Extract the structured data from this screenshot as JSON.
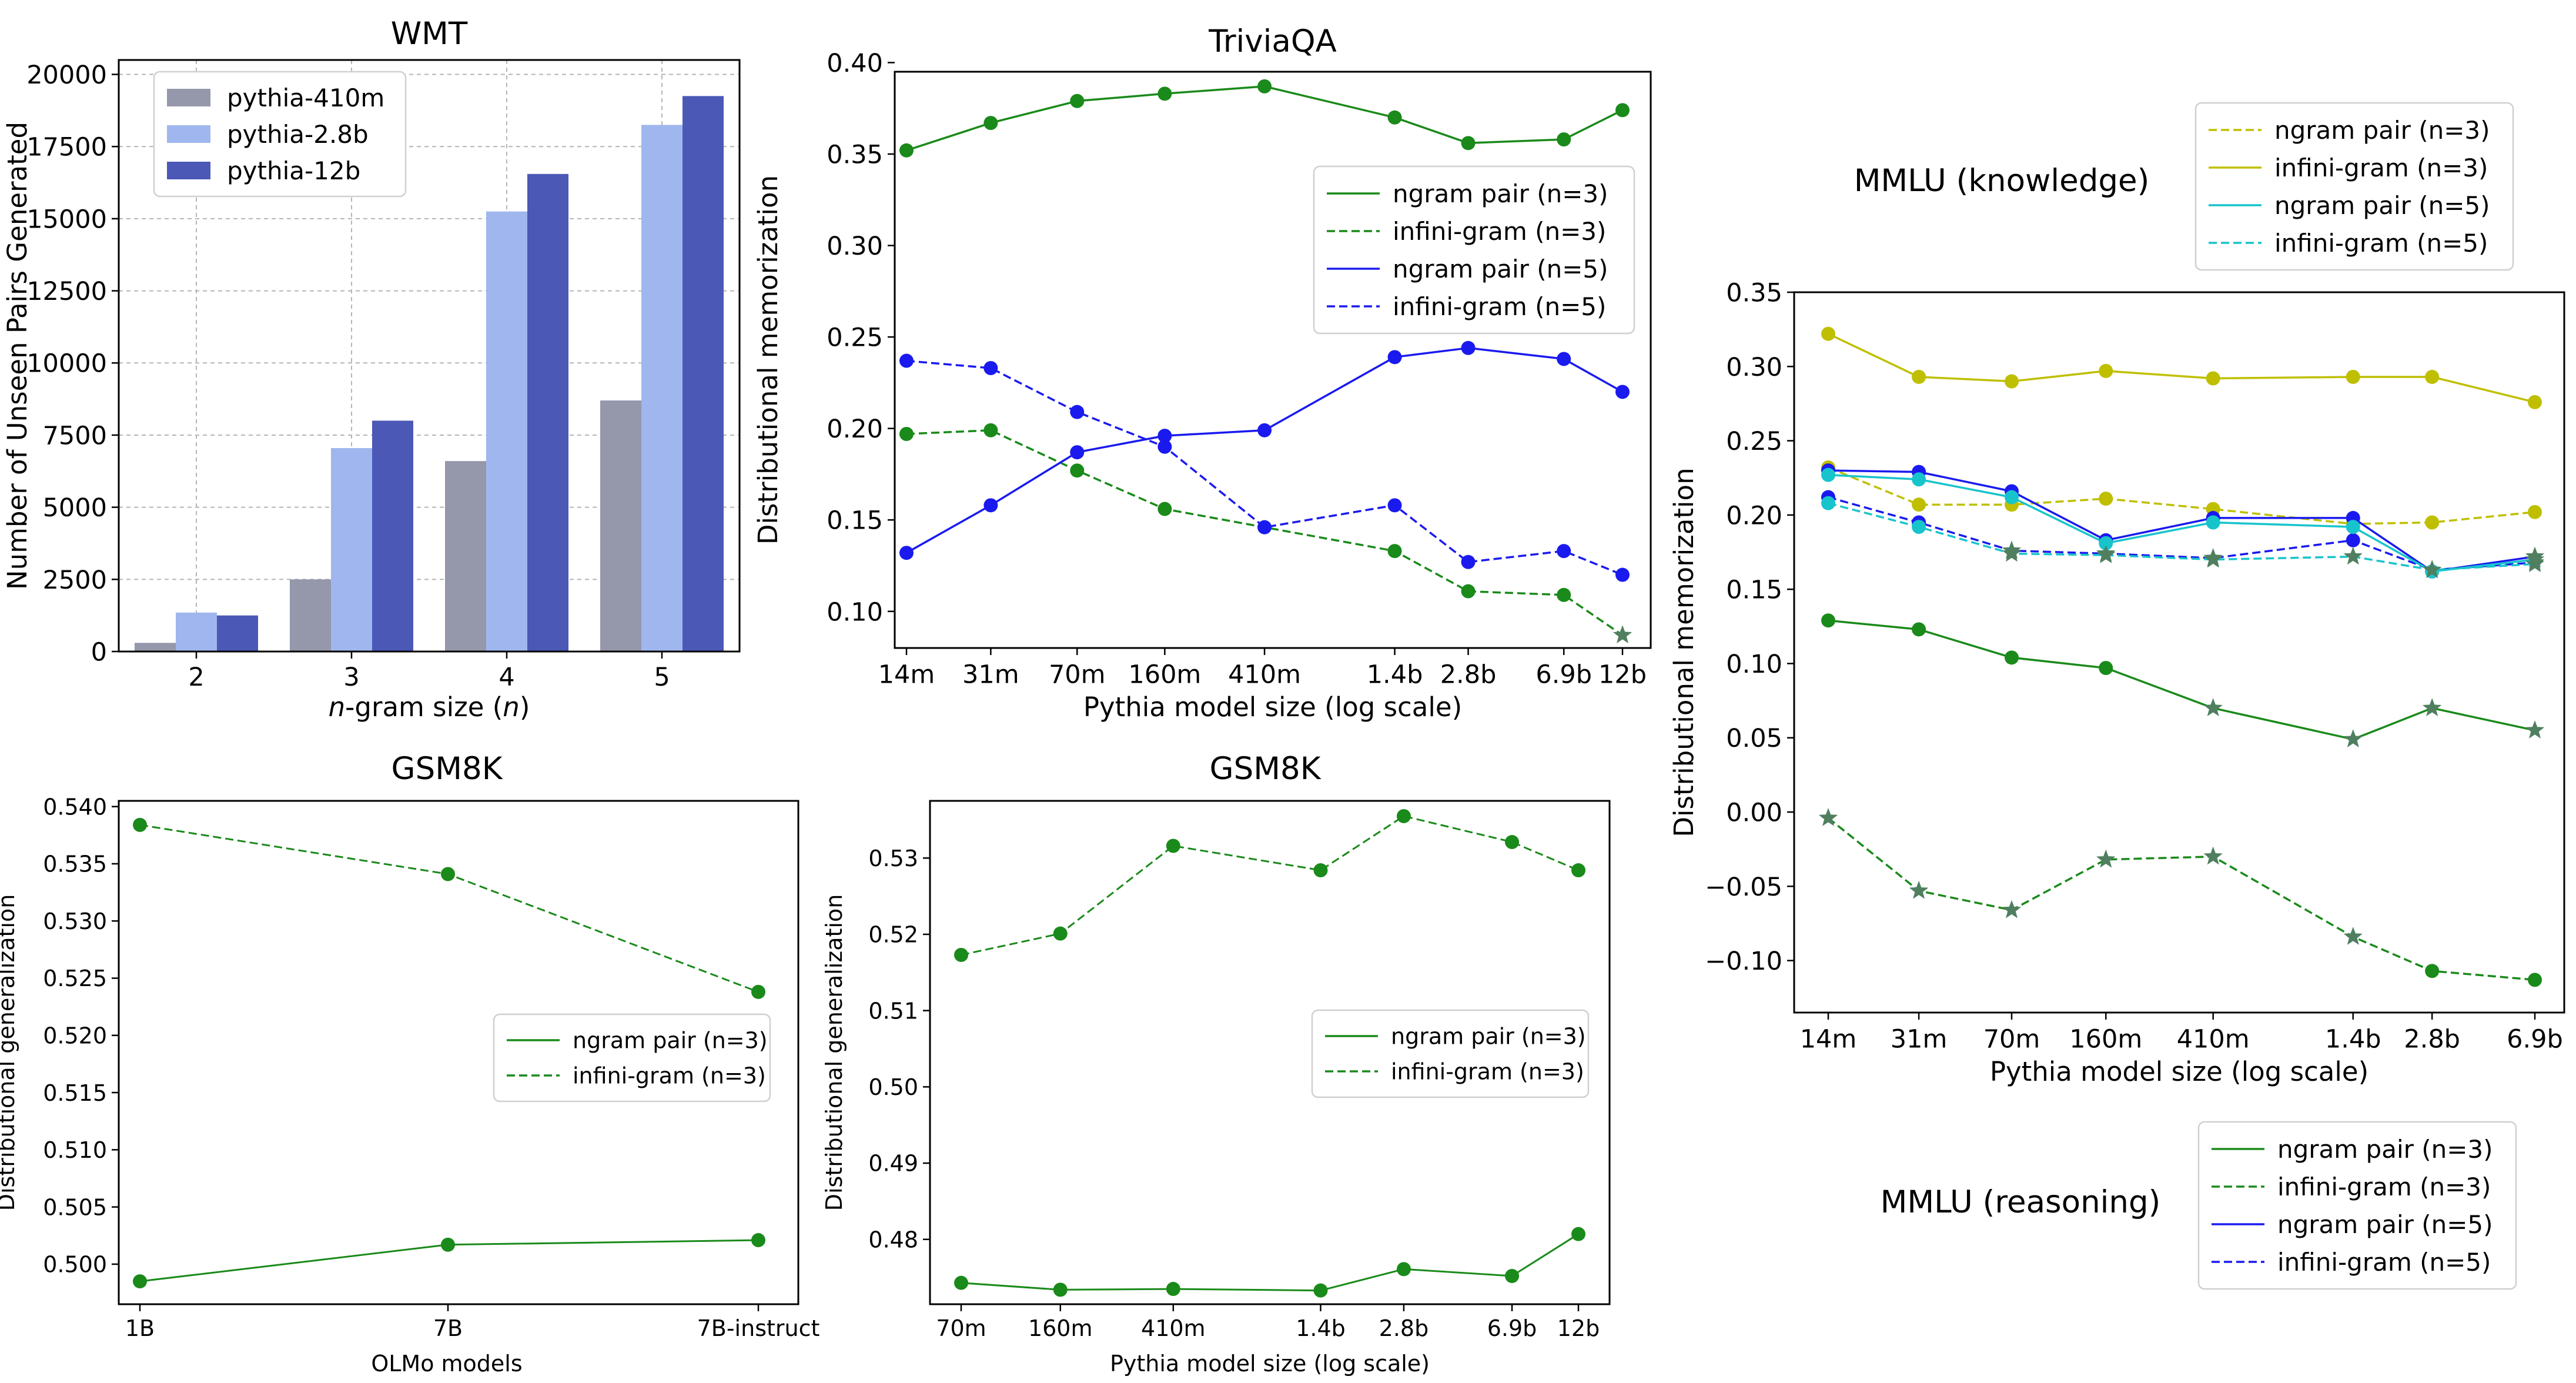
{
  "colors": {
    "green": "#1a8a1a",
    "blue": "#1a1aee",
    "olive": "#bfbf00",
    "cyan": "#17c4cc",
    "star": "#4f7f5f",
    "bar_410m": "#9597ab",
    "bar_2_8b": "#9fb7ee",
    "bar_12b": "#4b58b6"
  },
  "chart_data": [
    {
      "id": "wmt",
      "type": "bar",
      "title": "WMT",
      "xlabel_italic": "n",
      "xlabel_rest": "-gram size (",
      "xlabel_italic2": "n",
      "xlabel_end": ")",
      "ylabel": "Number of Unseen Pairs Generated",
      "categories": [
        "2",
        "3",
        "4",
        "5"
      ],
      "ylim": [
        0,
        20500
      ],
      "yticks": [
        "0",
        "2500",
        "5000",
        "7500",
        "10000",
        "12500",
        "15000",
        "17500",
        "20000"
      ],
      "ytick_values": [
        0,
        2500,
        5000,
        7500,
        10000,
        12500,
        15000,
        17500,
        20000
      ],
      "grid": true,
      "legend_position": "top-left",
      "series": [
        {
          "name": "pythia-410m",
          "color": "bar_410m",
          "values": [
            300,
            2500,
            6600,
            8700
          ]
        },
        {
          "name": "pythia-2.8b",
          "color": "bar_2_8b",
          "values": [
            1350,
            7050,
            15250,
            18250
          ]
        },
        {
          "name": "pythia-12b",
          "color": "bar_12b",
          "values": [
            1250,
            8000,
            16550,
            19250
          ]
        }
      ]
    },
    {
      "id": "triviaqa",
      "type": "line",
      "title": "TriviaQA",
      "xlabel": "Pythia model size (log scale)",
      "ylabel": "Distributional memorization",
      "x": [
        "14m",
        "31m",
        "70m",
        "160m",
        "410m",
        "1.4b",
        "2.8b",
        "6.9b",
        "12b"
      ],
      "x_params_millions": [
        14,
        31,
        70,
        160,
        410,
        1400,
        2800,
        6900,
        12000
      ],
      "ylim": [
        0.08,
        0.395
      ],
      "yticks": [
        "0.10",
        "0.15",
        "0.20",
        "0.25",
        "0.30",
        "0.35",
        "0.40"
      ],
      "ytick_values": [
        0.1,
        0.15,
        0.2,
        0.25,
        0.3,
        0.35,
        0.4
      ],
      "legend_position": "right",
      "series": [
        {
          "name": "ngram pair (n=3)",
          "color": "green",
          "dash": false,
          "values": [
            0.352,
            0.367,
            0.379,
            0.383,
            0.387,
            0.37,
            0.356,
            0.358,
            0.374
          ],
          "markers": [
            "o",
            "o",
            "o",
            "o",
            "o",
            "o",
            "o",
            "o",
            "o"
          ]
        },
        {
          "name": "infini-gram (n=3)",
          "color": "green",
          "dash": true,
          "values": [
            0.197,
            0.199,
            0.177,
            0.156,
            0.146,
            0.133,
            0.111,
            0.109,
            0.087
          ],
          "markers": [
            "o",
            "o",
            "o",
            "o",
            "o",
            "o",
            "o",
            "o",
            "*"
          ]
        },
        {
          "name": "ngram pair (n=5)",
          "color": "blue",
          "dash": false,
          "values": [
            0.132,
            0.158,
            0.187,
            0.196,
            0.199,
            0.239,
            0.244,
            0.238,
            0.22
          ],
          "markers": [
            "o",
            "o",
            "o",
            "o",
            "o",
            "o",
            "o",
            "o",
            "o"
          ]
        },
        {
          "name": "infini-gram (n=5)",
          "color": "blue",
          "dash": true,
          "values": [
            0.237,
            0.233,
            0.209,
            0.19,
            0.146,
            0.158,
            0.127,
            0.133,
            0.12
          ],
          "markers": [
            "o",
            "o",
            "o",
            "o",
            "o",
            "o",
            "o",
            "o",
            "o"
          ]
        }
      ]
    },
    {
      "id": "mmlu",
      "type": "line",
      "title_knowledge": "MMLU (knowledge)",
      "title_reasoning": "MMLU (reasoning)",
      "xlabel": "Pythia model size (log scale)",
      "ylabel": "Distributional memorization",
      "x": [
        "14m",
        "31m",
        "70m",
        "160m",
        "410m",
        "1.4b",
        "2.8b",
        "6.9b"
      ],
      "x_params_millions": [
        14,
        31,
        70,
        160,
        410,
        1400,
        2800,
        6900
      ],
      "ylim": [
        -0.135,
        0.35
      ],
      "yticks": [
        "−0.10",
        "−0.05",
        "0.00",
        "0.05",
        "0.10",
        "0.15",
        "0.20",
        "0.25",
        "0.30",
        "0.35"
      ],
      "ytick_values": [
        -0.1,
        -0.05,
        0.0,
        0.05,
        0.1,
        0.15,
        0.2,
        0.25,
        0.3,
        0.35
      ],
      "legend_knowledge": [
        {
          "name": "ngram pair (n=3)",
          "color": "olive",
          "dash": true
        },
        {
          "name": "infini-gram (n=3)",
          "color": "olive",
          "dash": false
        },
        {
          "name": "ngram pair (n=5)",
          "color": "cyan",
          "dash": false
        },
        {
          "name": "infini-gram (n=5)",
          "color": "cyan",
          "dash": true
        }
      ],
      "legend_reasoning": [
        {
          "name": "ngram pair (n=3)",
          "color": "green",
          "dash": false
        },
        {
          "name": "infini-gram (n=3)",
          "color": "green",
          "dash": true
        },
        {
          "name": "ngram pair (n=5)",
          "color": "blue",
          "dash": false
        },
        {
          "name": "infini-gram (n=5)",
          "color": "blue",
          "dash": true
        }
      ],
      "series": [
        {
          "group": "knowledge",
          "color": "olive",
          "dash": false,
          "values": [
            0.322,
            0.293,
            0.29,
            0.297,
            0.292,
            0.293,
            0.293,
            0.276
          ],
          "markers": [
            "o",
            "o",
            "o",
            "o",
            "o",
            "o",
            "o",
            "o"
          ]
        },
        {
          "group": "knowledge",
          "color": "olive",
          "dash": true,
          "values": [
            0.232,
            0.207,
            0.207,
            0.211,
            0.204,
            0.194,
            0.195,
            0.202
          ],
          "markers": [
            "o",
            "o",
            "o",
            "o",
            "o",
            "o",
            "o",
            "o"
          ]
        },
        {
          "group": "reasoning",
          "color": "blue",
          "dash": false,
          "values": [
            0.23,
            0.229,
            0.216,
            0.183,
            0.198,
            0.198,
            0.162,
            0.172
          ],
          "markers": [
            "o",
            "o",
            "o",
            "o",
            "o",
            "o",
            "o",
            "*"
          ]
        },
        {
          "group": "reasoning",
          "color": "blue",
          "dash": true,
          "values": [
            0.212,
            0.195,
            0.176,
            0.174,
            0.171,
            0.183,
            0.163,
            0.168
          ],
          "markers": [
            "o",
            "o",
            "*",
            "*",
            "*",
            "o",
            "*",
            "*"
          ]
        },
        {
          "group": "knowledge",
          "color": "cyan",
          "dash": false,
          "values": [
            0.227,
            0.224,
            0.212,
            0.181,
            0.195,
            0.192,
            0.162,
            0.17
          ],
          "markers": [
            "o",
            "o",
            "o",
            "o",
            "o",
            "o",
            "o",
            "*"
          ]
        },
        {
          "group": "knowledge",
          "color": "cyan",
          "dash": true,
          "values": [
            0.208,
            0.192,
            0.174,
            0.173,
            0.17,
            0.172,
            0.163,
            0.167
          ],
          "markers": [
            "o",
            "o",
            "*",
            "*",
            "*",
            "*",
            "*",
            "*"
          ]
        },
        {
          "group": "reasoning",
          "color": "green",
          "dash": false,
          "values": [
            0.129,
            0.123,
            0.104,
            0.097,
            0.07,
            0.049,
            0.07,
            0.055
          ],
          "markers": [
            "o",
            "o",
            "o",
            "o",
            "*",
            "*",
            "*",
            "*"
          ]
        },
        {
          "group": "reasoning",
          "color": "green",
          "dash": true,
          "values": [
            -0.004,
            -0.053,
            -0.066,
            -0.032,
            -0.03,
            -0.084,
            -0.107,
            -0.113
          ],
          "markers": [
            "*",
            "*",
            "*",
            "*",
            "*",
            "*",
            "o",
            "o"
          ]
        }
      ]
    },
    {
      "id": "gsm8k_olmo",
      "type": "line",
      "title": "GSM8K",
      "xlabel": "OLMo models",
      "ylabel": "Distributional generalization",
      "x": [
        "1B",
        "7B",
        "7B-instruct"
      ],
      "ylim": [
        0.4965,
        0.5405
      ],
      "yticks": [
        "0.500",
        "0.505",
        "0.510",
        "0.515",
        "0.520",
        "0.525",
        "0.530",
        "0.535",
        "0.540"
      ],
      "ytick_values": [
        0.5,
        0.505,
        0.51,
        0.515,
        0.52,
        0.525,
        0.53,
        0.535,
        0.54
      ],
      "legend_position": "right",
      "series": [
        {
          "name": "ngram pair (n=3)",
          "color": "green",
          "dash": false,
          "values": [
            0.4985,
            0.5017,
            0.5021
          ]
        },
        {
          "name": "infini-gram (n=3)",
          "color": "green",
          "dash": true,
          "values": [
            0.5384,
            0.5341,
            0.5238
          ]
        }
      ]
    },
    {
      "id": "gsm8k_pythia",
      "type": "line",
      "title": "GSM8K",
      "xlabel": "Pythia model size (log scale)",
      "ylabel": "Distributional generalization",
      "x": [
        "70m",
        "160m",
        "410m",
        "1.4b",
        "2.8b",
        "6.9b",
        "12b"
      ],
      "x_params_millions": [
        70,
        160,
        410,
        1400,
        2800,
        6900,
        12000
      ],
      "ylim": [
        0.4715,
        0.5375
      ],
      "yticks": [
        "0.48",
        "0.49",
        "0.50",
        "0.51",
        "0.52",
        "0.53"
      ],
      "ytick_values": [
        0.48,
        0.49,
        0.5,
        0.51,
        0.52,
        0.53
      ],
      "legend_position": "right",
      "series": [
        {
          "name": "ngram pair (n=3)",
          "color": "green",
          "dash": false,
          "values": [
            0.4743,
            0.4734,
            0.4735,
            0.4733,
            0.4761,
            0.4752,
            0.4807
          ]
        },
        {
          "name": "infini-gram (n=3)",
          "color": "green",
          "dash": true,
          "values": [
            0.5173,
            0.5201,
            0.5316,
            0.5284,
            0.5355,
            0.5321,
            0.5284
          ]
        }
      ]
    }
  ]
}
